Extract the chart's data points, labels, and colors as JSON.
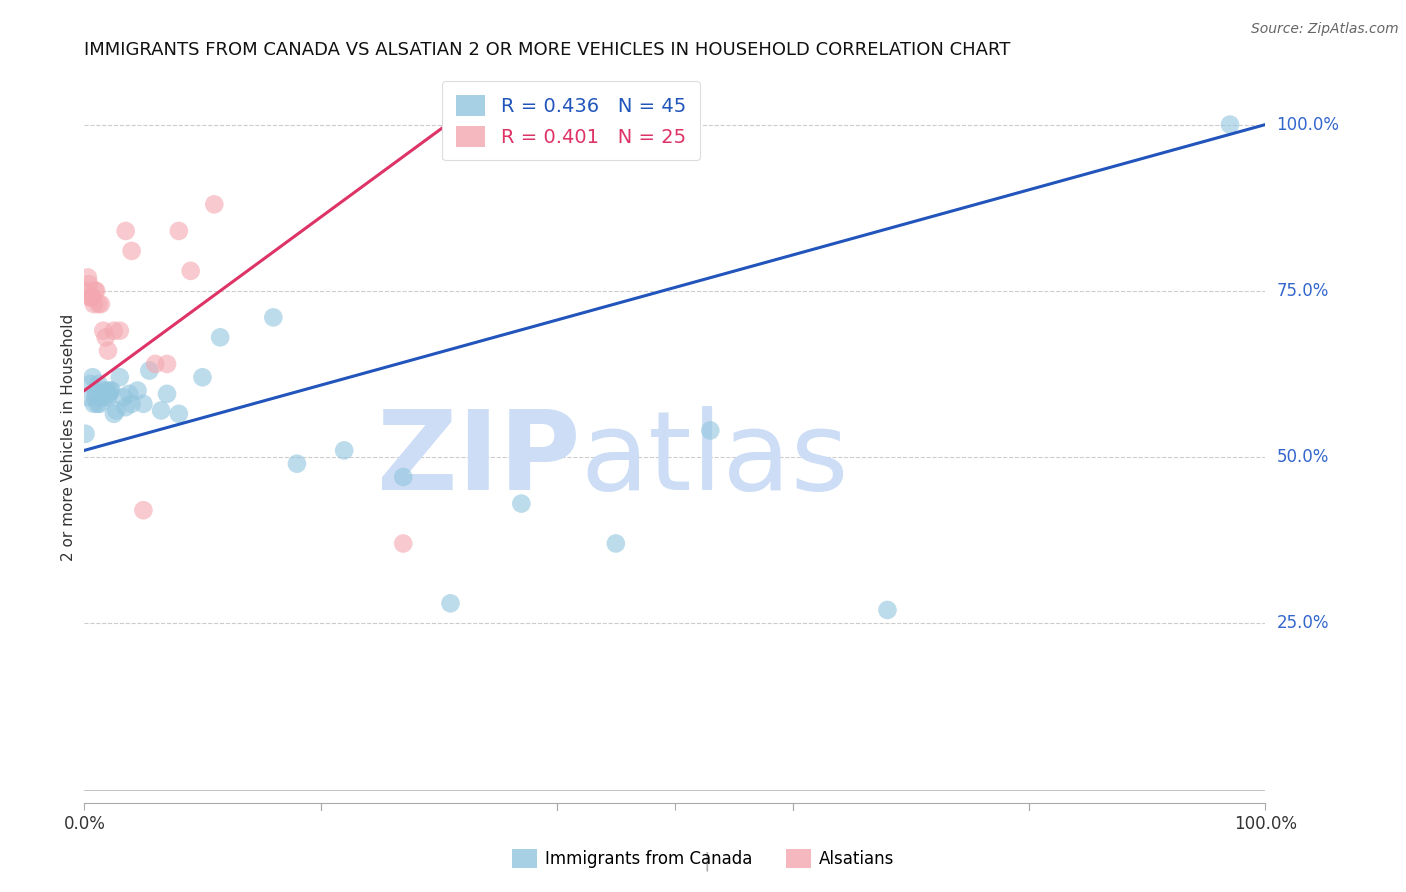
{
  "title": "IMMIGRANTS FROM CANADA VS ALSATIAN 2 OR MORE VEHICLES IN HOUSEHOLD CORRELATION CHART",
  "source": "Source: ZipAtlas.com",
  "ylabel": "2 or more Vehicles in Household",
  "ytick_labels": [
    "25.0%",
    "50.0%",
    "75.0%",
    "100.0%"
  ],
  "ytick_values": [
    0.25,
    0.5,
    0.75,
    1.0
  ],
  "xlim": [
    0.0,
    1.0
  ],
  "ylim": [
    -0.02,
    1.08
  ],
  "legend_blue_r": "R = 0.436",
  "legend_blue_n": "N = 45",
  "legend_pink_r": "R = 0.401",
  "legend_pink_n": "N = 25",
  "legend_label_blue": "Immigrants from Canada",
  "legend_label_pink": "Alsatians",
  "blue_color": "#92c5de",
  "pink_color": "#f4a7b0",
  "line_blue": "#2255bb",
  "line_pink": "#dd3366",
  "watermark_zip": "ZIP",
  "watermark_atlas": "atlas",
  "watermark_color": "#ccddf5",
  "blue_scatter_x": [
    0.001,
    0.003,
    0.005,
    0.007,
    0.008,
    0.009,
    0.01,
    0.011,
    0.012,
    0.013,
    0.014,
    0.015,
    0.016,
    0.017,
    0.018,
    0.019,
    0.02,
    0.021,
    0.022,
    0.023,
    0.025,
    0.027,
    0.03,
    0.033,
    0.035,
    0.038,
    0.04,
    0.045,
    0.05,
    0.055,
    0.065,
    0.07,
    0.08,
    0.1,
    0.115,
    0.16,
    0.18,
    0.22,
    0.27,
    0.31,
    0.37,
    0.45,
    0.53,
    0.68,
    0.97
  ],
  "blue_scatter_y": [
    0.535,
    0.59,
    0.61,
    0.62,
    0.58,
    0.59,
    0.595,
    0.58,
    0.61,
    0.58,
    0.59,
    0.595,
    0.6,
    0.59,
    0.595,
    0.6,
    0.59,
    0.595,
    0.6,
    0.6,
    0.565,
    0.57,
    0.62,
    0.59,
    0.575,
    0.595,
    0.58,
    0.6,
    0.58,
    0.63,
    0.57,
    0.595,
    0.565,
    0.62,
    0.68,
    0.71,
    0.49,
    0.51,
    0.47,
    0.28,
    0.43,
    0.37,
    0.54,
    0.27,
    1.0
  ],
  "pink_scatter_x": [
    0.001,
    0.003,
    0.004,
    0.005,
    0.006,
    0.007,
    0.008,
    0.009,
    0.01,
    0.012,
    0.014,
    0.016,
    0.018,
    0.02,
    0.025,
    0.03,
    0.035,
    0.04,
    0.05,
    0.06,
    0.07,
    0.08,
    0.09,
    0.11,
    0.27
  ],
  "pink_scatter_y": [
    0.75,
    0.77,
    0.76,
    0.74,
    0.74,
    0.74,
    0.73,
    0.75,
    0.75,
    0.73,
    0.73,
    0.69,
    0.68,
    0.66,
    0.69,
    0.69,
    0.84,
    0.81,
    0.42,
    0.64,
    0.64,
    0.84,
    0.78,
    0.88,
    0.37
  ],
  "blue_line_x": [
    0.0,
    1.0
  ],
  "blue_line_y": [
    0.51,
    1.0
  ],
  "pink_line_x": [
    0.0,
    0.33
  ],
  "pink_line_y": [
    0.6,
    1.03
  ],
  "title_fontsize": 13,
  "axis_label_fontsize": 11,
  "tick_fontsize": 12,
  "legend_fontsize": 13,
  "source_fontsize": 10
}
